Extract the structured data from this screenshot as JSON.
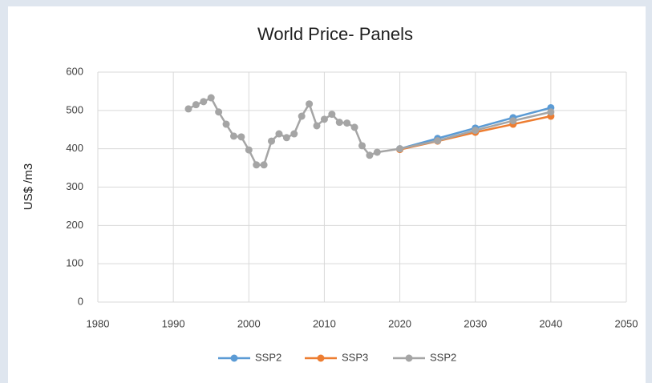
{
  "chart_data": {
    "type": "line",
    "title": "World Price- Panels",
    "y_label": "US$ /m3",
    "xlim": [
      1980,
      2050
    ],
    "xticks": [
      1980,
      1990,
      2000,
      2010,
      2020,
      2030,
      2040,
      2050
    ],
    "ylim": [
      0,
      600
    ],
    "yticks": [
      0,
      100,
      200,
      300,
      400,
      500,
      600
    ],
    "grid": true,
    "legend": "bottom",
    "series": [
      {
        "name": "SSP2",
        "color": "#5b9bd5",
        "x": [
          2020,
          2025,
          2030,
          2035,
          2040
        ],
        "values": [
          400,
          427,
          454,
          481,
          507
        ]
      },
      {
        "name": "SSP3",
        "color": "#ed7d31",
        "x": [
          2020,
          2025,
          2030,
          2035,
          2040
        ],
        "values": [
          398,
          420,
          443,
          464,
          485
        ]
      },
      {
        "name": "SSP2",
        "color": "#a5a5a5",
        "x": [
          1992,
          1993,
          1994,
          1995,
          1996,
          1997,
          1998,
          1999,
          2000,
          2001,
          2002,
          2003,
          2004,
          2005,
          2006,
          2007,
          2008,
          2009,
          2010,
          2011,
          2012,
          2013,
          2014,
          2015,
          2016,
          2017,
          2020,
          2025,
          2030,
          2035,
          2040
        ],
        "values": [
          504,
          515,
          523,
          533,
          496,
          464,
          433,
          431,
          397,
          358,
          358,
          420,
          439,
          429,
          439,
          485,
          517,
          460,
          477,
          490,
          469,
          467,
          456,
          408,
          383,
          391,
          400,
          421,
          448,
          473,
          496
        ]
      }
    ]
  }
}
